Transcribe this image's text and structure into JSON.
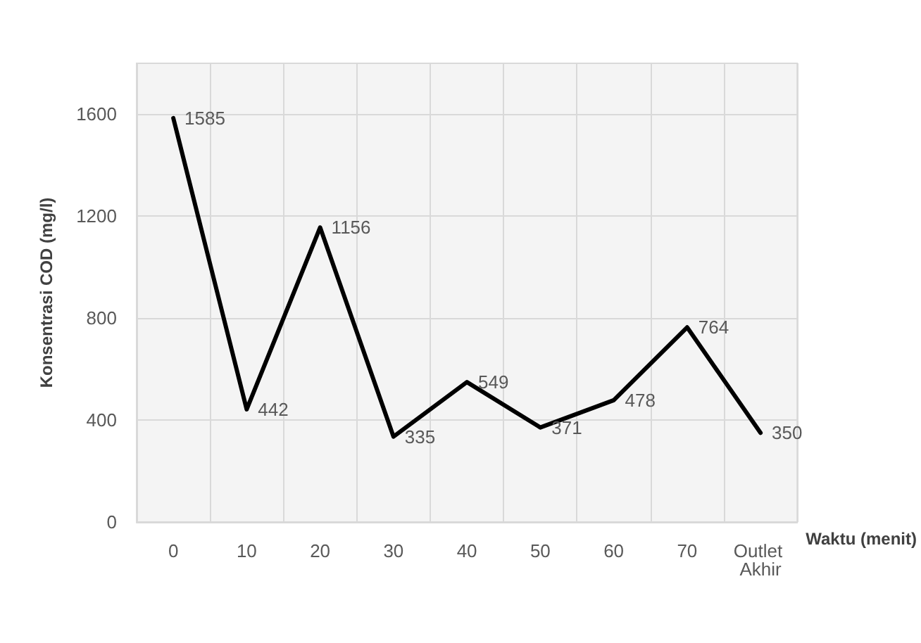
{
  "chart_data": {
    "type": "line",
    "xlabel": "Waktu (menit)",
    "ylabel": "Konsentrasi COD (mg/l)",
    "categories": [
      "0",
      "10",
      "20",
      "30",
      "40",
      "50",
      "60",
      "70",
      "Outlet Akhir"
    ],
    "series": [
      {
        "color": "#000000",
        "values": [
          1585,
          442,
          1156,
          335,
          549,
          371,
          478,
          764,
          350
        ]
      }
    ],
    "ylim": [
      0,
      1800
    ],
    "yticks": [
      0,
      400,
      800,
      1200,
      1600
    ],
    "grid": true,
    "data_labels": true,
    "marker": "none",
    "line_style": "solid"
  }
}
